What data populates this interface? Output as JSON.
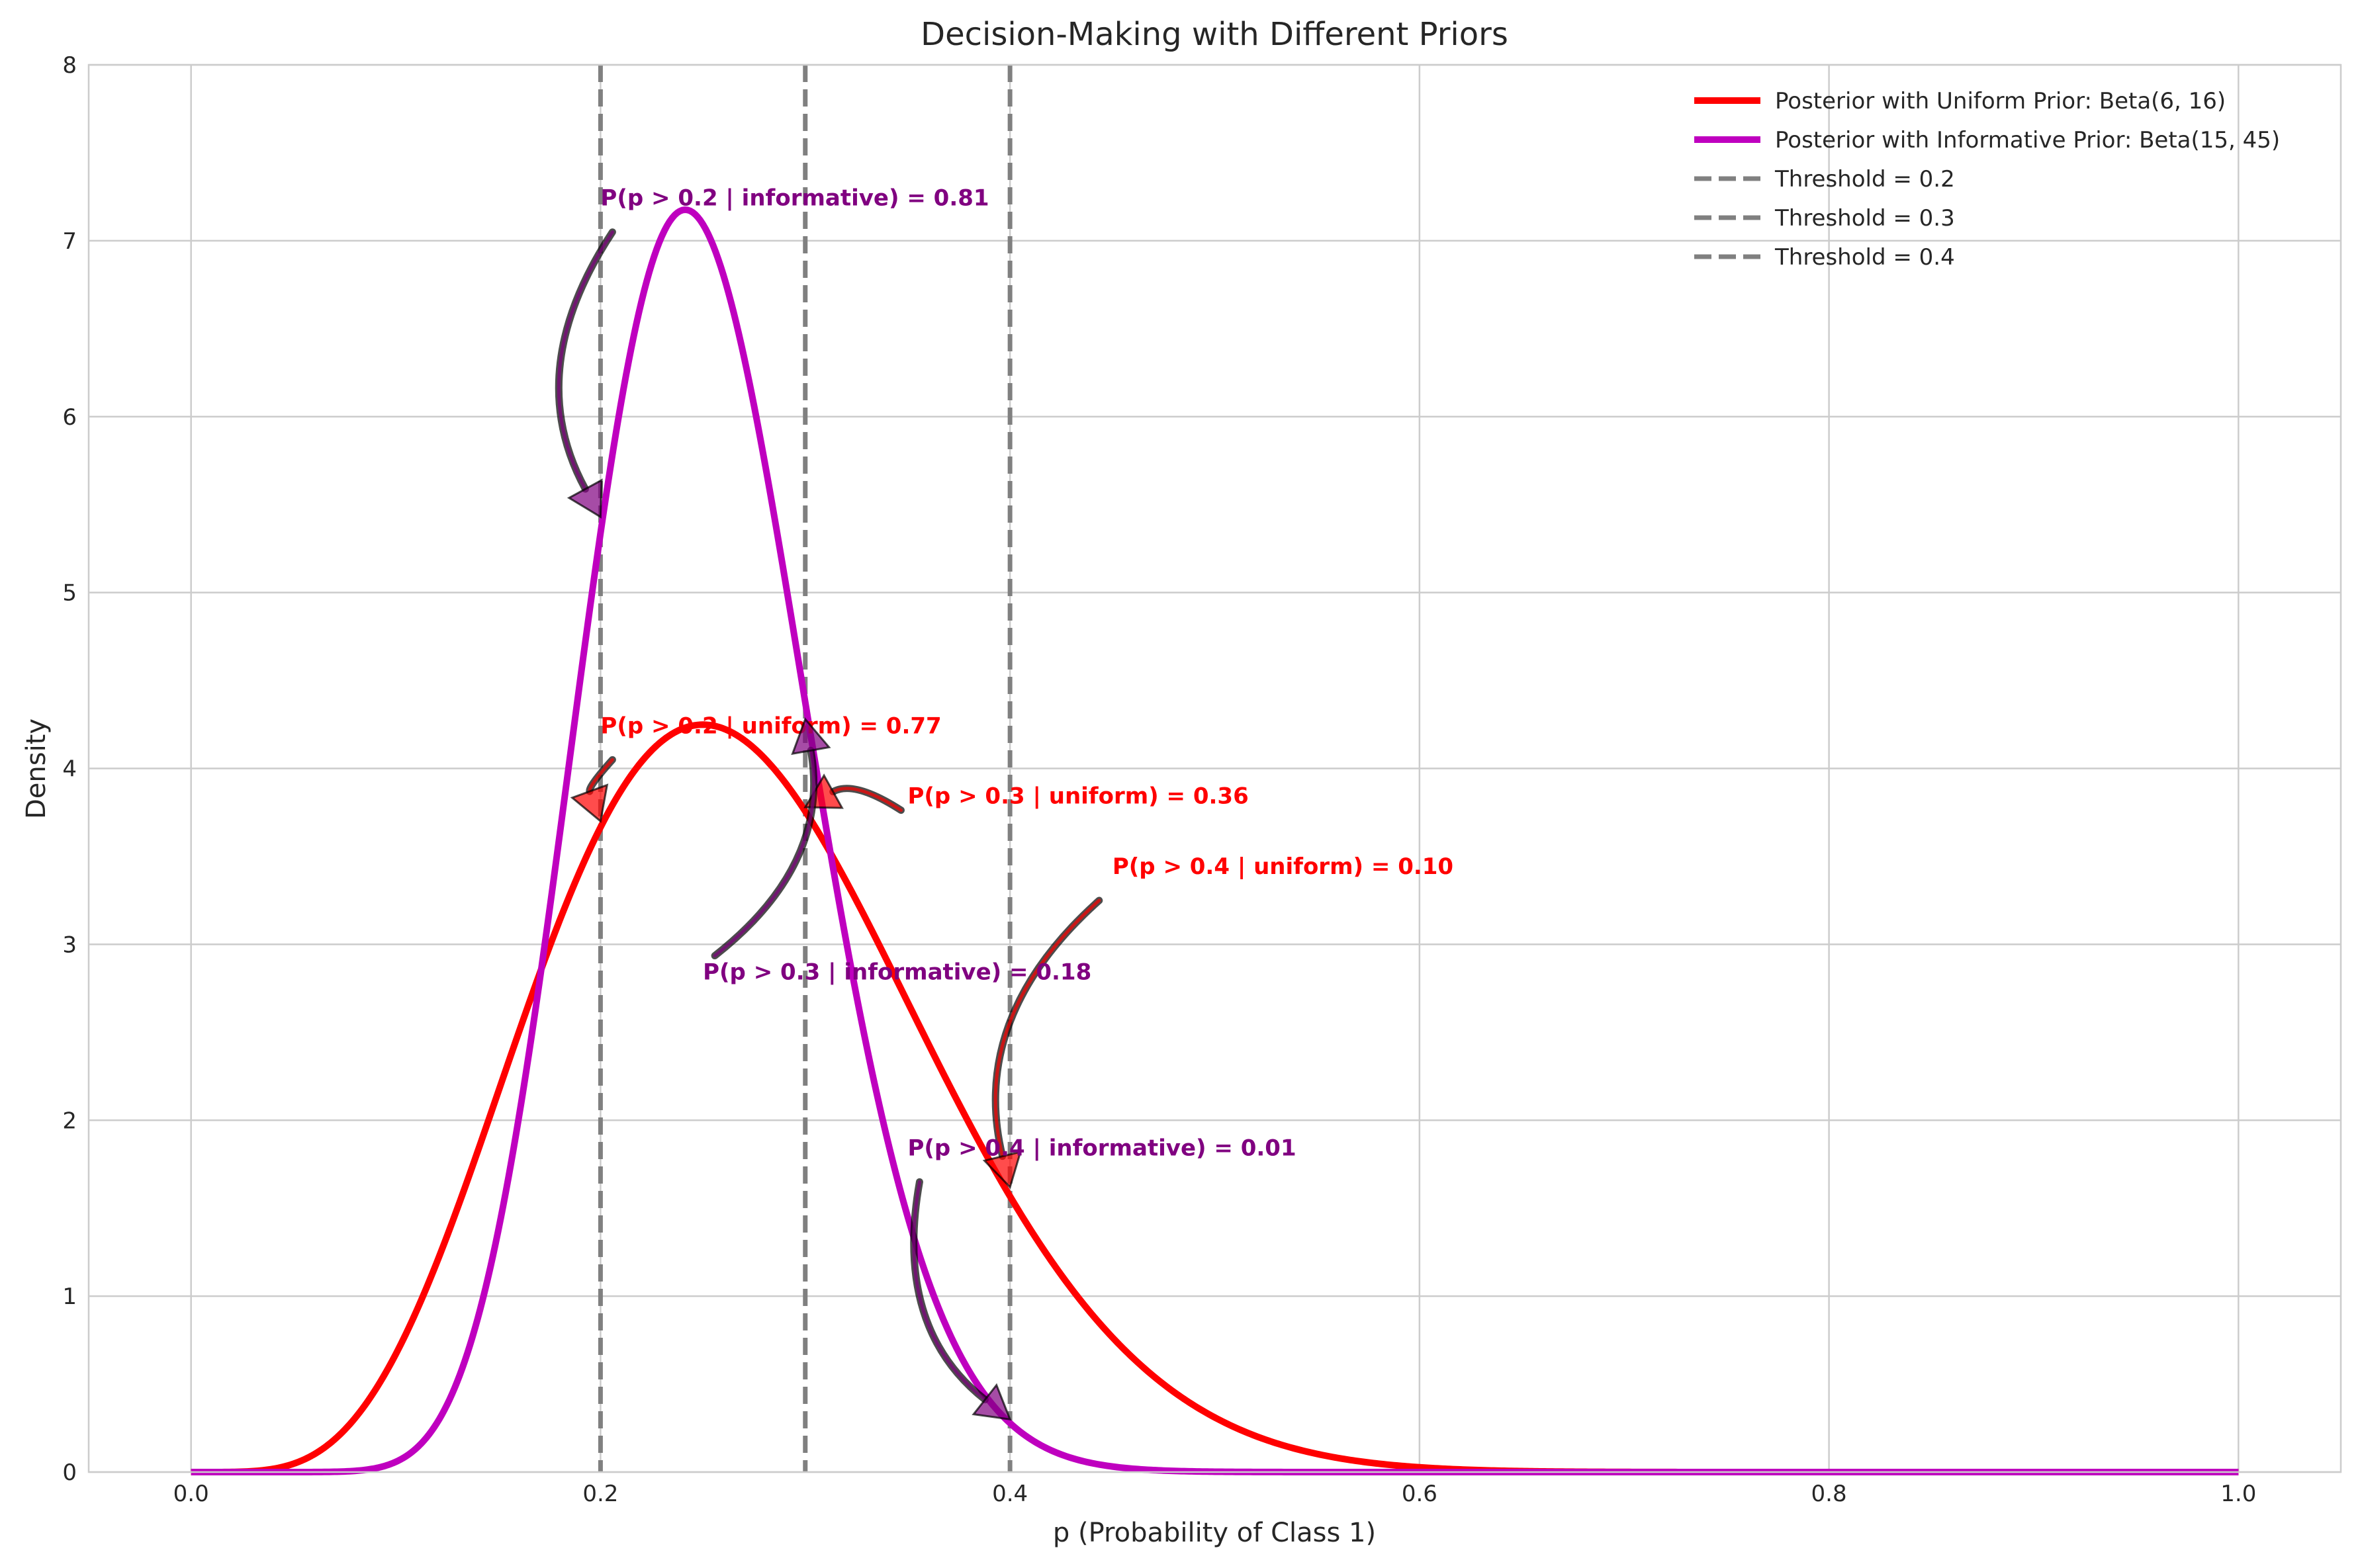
{
  "chart_data": {
    "type": "line",
    "title": "Decision-Making with Different Priors",
    "xlabel": "p (Probability of Class 1)",
    "ylabel": "Density",
    "xlim": [
      -0.05,
      1.05
    ],
    "ylim": [
      0,
      8
    ],
    "xticks": [
      0.0,
      0.2,
      0.4,
      0.6,
      0.8,
      1.0
    ],
    "xtick_labels": [
      "0.0",
      "0.2",
      "0.4",
      "0.6",
      "0.8",
      "1.0"
    ],
    "yticks": [
      0,
      1,
      2,
      3,
      4,
      5,
      6,
      7,
      8
    ],
    "ytick_labels": [
      "0",
      "1",
      "2",
      "3",
      "4",
      "5",
      "6",
      "7",
      "8"
    ],
    "grid": true,
    "legend_position": "top-right",
    "series": [
      {
        "name": "Posterior with Uniform Prior: Beta(6, 16)",
        "alpha": 6,
        "beta": 16,
        "color": "#ff0000"
      },
      {
        "name": "Posterior with Informative Prior: Beta(15, 45)",
        "alpha": 15,
        "beta": 45,
        "color": "#bf00bf"
      }
    ],
    "thresholds": [
      {
        "value": 0.2,
        "label": "Threshold = 0.2"
      },
      {
        "value": 0.3,
        "label": "Threshold = 0.3"
      },
      {
        "value": 0.4,
        "label": "Threshold = 0.4"
      }
    ],
    "threshold_color": "#808080",
    "annotations": [
      {
        "text": "P(p > 0.2 | informative) = 0.81",
        "color": "#800080",
        "arrow_color": "#800080",
        "text_x": 0.2,
        "text_y": 7.2,
        "target_x": 0.2,
        "target_y": 5.43
      },
      {
        "text": "P(p > 0.2 | uniform) = 0.77",
        "color": "#ff0000",
        "arrow_color": "#ff0000",
        "text_x": 0.2,
        "text_y": 4.2,
        "target_x": 0.2,
        "target_y": 3.7
      },
      {
        "text": "P(p > 0.3 | uniform) = 0.36",
        "color": "#ff0000",
        "arrow_color": "#ff0000",
        "text_x": 0.35,
        "text_y": 3.8,
        "target_x": 0.3,
        "target_y": 3.78
      },
      {
        "text": "P(p > 0.4 | uniform) = 0.10",
        "color": "#ff0000",
        "arrow_color": "#ff0000",
        "text_x": 0.45,
        "text_y": 3.4,
        "target_x": 0.4,
        "target_y": 1.62
      },
      {
        "text": "P(p > 0.3 | informative) = 0.18",
        "color": "#800080",
        "arrow_color": "#800080",
        "text_x": 0.25,
        "text_y": 2.8,
        "target_x": 0.3,
        "target_y": 4.28
      },
      {
        "text": "P(p > 0.4 | informative) = 0.01",
        "color": "#800080",
        "arrow_color": "#800080",
        "text_x": 0.35,
        "text_y": 1.8,
        "target_x": 0.4,
        "target_y": 0.3
      }
    ]
  }
}
